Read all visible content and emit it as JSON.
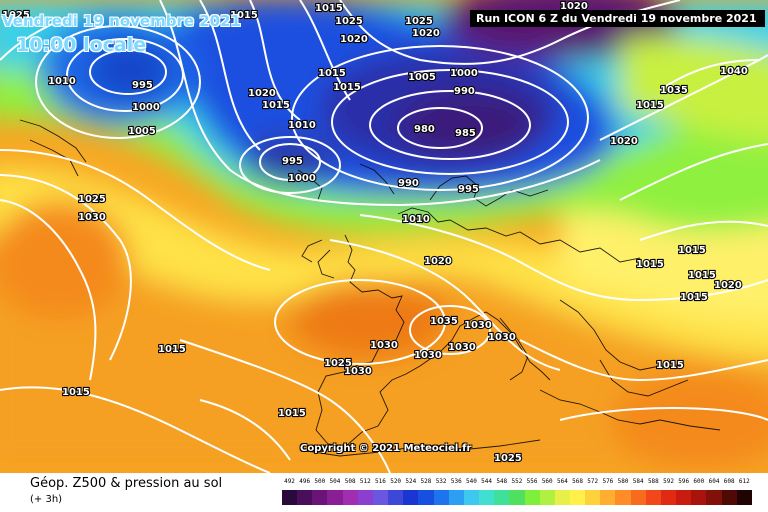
{
  "header": {
    "date": "Vendredi 19 novembre 2021",
    "time": "10:00 locale",
    "run": "Run ICON 6 Z du Vendredi 19 novembre 2021"
  },
  "copyright": "Copyright © 2021 Meteociel.fr",
  "legend": {
    "title": "Géop. Z500 & pression au sol",
    "subtitle": "(+ 3h)",
    "scale_values": [
      "492",
      "496",
      "500",
      "504",
      "508",
      "512",
      "516",
      "520",
      "524",
      "528",
      "532",
      "536",
      "540",
      "544",
      "548",
      "552",
      "556",
      "560",
      "564",
      "568",
      "572",
      "576",
      "580",
      "584",
      "588",
      "592",
      "596",
      "600",
      "604",
      "608",
      "612"
    ],
    "scale_colors": [
      "#2a0a3a",
      "#4a0f5a",
      "#6a1478",
      "#8a1e95",
      "#a12db0",
      "#8a3fcf",
      "#6a56e0",
      "#3d48d8",
      "#1a35d0",
      "#1550e0",
      "#1e74ef",
      "#2c9ff5",
      "#3ec8f0",
      "#40e0d0",
      "#3ee09a",
      "#4fe060",
      "#7ef03c",
      "#b0f040",
      "#e6f048",
      "#fff04a",
      "#ffd23c",
      "#ffae30",
      "#ff8c26",
      "#f86a1e",
      "#f04818",
      "#e02a14",
      "#c81c10",
      "#a8140c",
      "#801008",
      "#500a06",
      "#200404"
    ]
  },
  "pressure_labels": [
    {
      "t": "1025"
    },
    {
      "t": "1015"
    },
    {
      "t": "1025"
    },
    {
      "t": "1020"
    },
    {
      "t": "1015"
    },
    {
      "t": "1010"
    },
    {
      "t": "995"
    },
    {
      "t": "1000"
    },
    {
      "t": "1005"
    },
    {
      "t": "1020"
    },
    {
      "t": "1015"
    },
    {
      "t": "1010"
    },
    {
      "t": "1015"
    },
    {
      "t": "1015"
    },
    {
      "t": "995"
    },
    {
      "t": "1000"
    },
    {
      "t": "1005"
    },
    {
      "t": "1000"
    },
    {
      "t": "990"
    },
    {
      "t": "980"
    },
    {
      "t": "985"
    },
    {
      "t": "990"
    },
    {
      "t": "995"
    },
    {
      "t": "1040"
    },
    {
      "t": "1035"
    },
    {
      "t": "1025"
    },
    {
      "t": "1020"
    },
    {
      "t": "1020"
    },
    {
      "t": "1025"
    },
    {
      "t": "1030"
    },
    {
      "t": "1010"
    },
    {
      "t": "1020"
    },
    {
      "t": "1015"
    },
    {
      "t": "1015"
    },
    {
      "t": "1015"
    },
    {
      "t": "1015"
    },
    {
      "t": "1020"
    },
    {
      "t": "1035"
    },
    {
      "t": "1030"
    },
    {
      "t": "1030"
    },
    {
      "t": "1030"
    },
    {
      "t": "1030"
    },
    {
      "t": "1030"
    },
    {
      "t": "1025"
    },
    {
      "t": "1030"
    },
    {
      "t": "1015"
    },
    {
      "t": "1015"
    },
    {
      "t": "1015"
    },
    {
      "t": "1015"
    },
    {
      "t": "1025"
    },
    {
      "t": "1020"
    },
    {
      "t": "1015"
    }
  ]
}
